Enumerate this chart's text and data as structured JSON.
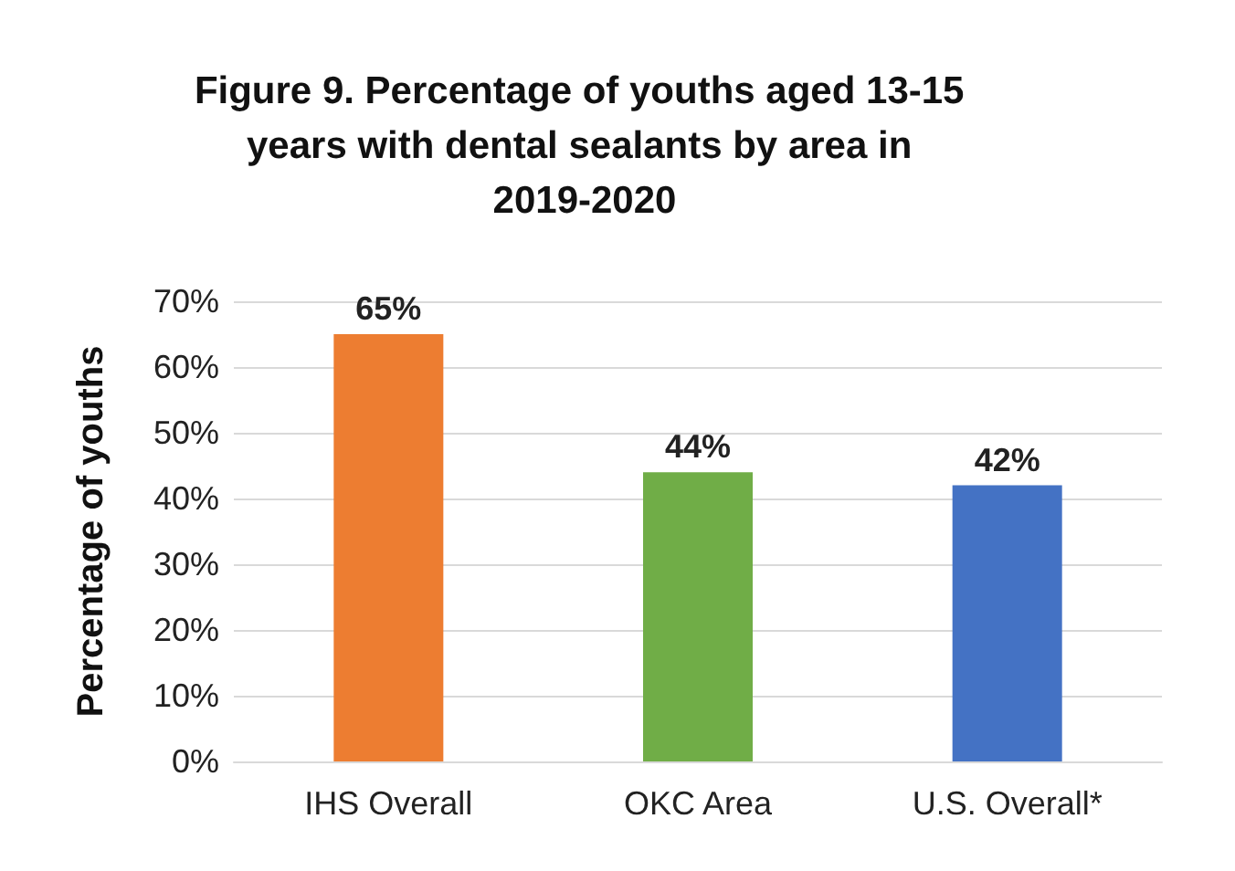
{
  "chart_data": {
    "type": "bar",
    "title": "Figure 9. Percentage of youths aged 13-15 years with dental sealants by area in 2019-2020",
    "ylabel": "Percentage of youths",
    "categories": [
      "IHS Overall",
      "OKC Area",
      "U.S. Overall*"
    ],
    "values": [
      65,
      44,
      42
    ],
    "colors": [
      "#ed7d31",
      "#70ad47",
      "#4472c4"
    ],
    "value_labels": [
      "65%",
      "44%",
      "42%"
    ],
    "ylim": [
      0,
      70
    ],
    "yticks": [
      {
        "value": 0,
        "label": "0%"
      },
      {
        "value": 10,
        "label": "10%"
      },
      {
        "value": 20,
        "label": "20%"
      },
      {
        "value": 30,
        "label": "30%"
      },
      {
        "value": 40,
        "label": "40%"
      },
      {
        "value": 50,
        "label": "50%"
      },
      {
        "value": 60,
        "label": "60%"
      },
      {
        "value": 70,
        "label": "70%"
      }
    ],
    "grid": "y"
  }
}
